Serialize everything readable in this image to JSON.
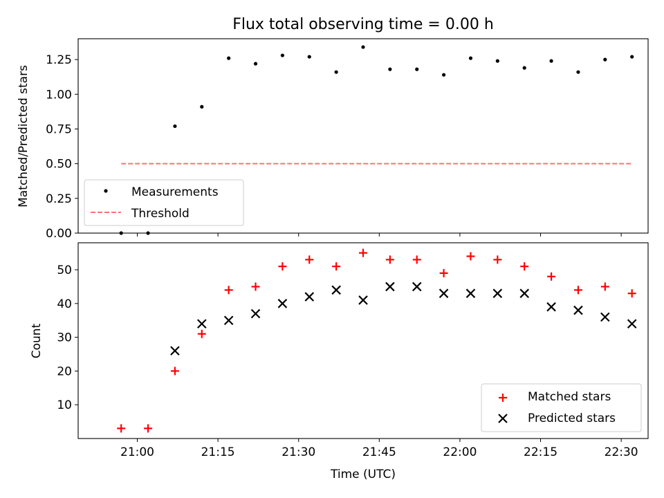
{
  "chart_data": [
    {
      "type": "scatter",
      "title": "Flux total observing time = 0.00 h",
      "xlabel": "",
      "ylabel": "Matched/Predicted stars",
      "ylim": [
        0,
        1.4
      ],
      "yticks": [
        "0.00",
        "0.25",
        "0.50",
        "0.75",
        "1.00",
        "1.25"
      ],
      "ytick_values": [
        0,
        0.25,
        0.5,
        0.75,
        1.0,
        1.25
      ],
      "grid": false,
      "legend_position": "lower-left",
      "series": [
        {
          "name": "Measurements",
          "marker": "dot",
          "color": "#000000",
          "x": [
            "20:57",
            "21:02",
            "21:07",
            "21:12",
            "21:17",
            "21:22",
            "21:27",
            "21:32",
            "21:37",
            "21:42",
            "21:47",
            "21:52",
            "21:57",
            "22:02",
            "22:07",
            "22:12",
            "22:17",
            "22:22",
            "22:27",
            "22:32"
          ],
          "y": [
            0.0,
            0.0,
            0.77,
            0.91,
            1.26,
            1.22,
            1.28,
            1.27,
            1.16,
            1.34,
            1.18,
            1.18,
            1.14,
            1.26,
            1.24,
            1.19,
            1.24,
            1.16,
            1.25,
            1.27
          ]
        },
        {
          "name": "Threshold",
          "style": "dashed-line",
          "color": "#ff7070",
          "x": [
            "20:57",
            "22:32"
          ],
          "y": [
            0.5,
            0.5
          ]
        }
      ]
    },
    {
      "type": "scatter",
      "title": "",
      "xlabel": "Time (UTC)",
      "ylabel": "Count",
      "ylim": [
        0,
        58
      ],
      "yticks": [
        "10",
        "20",
        "30",
        "40",
        "50"
      ],
      "ytick_values": [
        10,
        20,
        30,
        40,
        50
      ],
      "xticks": [
        "21:00",
        "21:15",
        "21:30",
        "21:45",
        "22:00",
        "22:15",
        "22:30"
      ],
      "xrange": [
        "20:49",
        "22:35"
      ],
      "grid": false,
      "legend_position": "lower-right",
      "series": [
        {
          "name": "Matched stars",
          "marker": "plus",
          "color": "#ff0000",
          "x": [
            "20:57",
            "21:02",
            "21:07",
            "21:12",
            "21:17",
            "21:22",
            "21:27",
            "21:32",
            "21:37",
            "21:42",
            "21:47",
            "21:52",
            "21:57",
            "22:02",
            "22:07",
            "22:12",
            "22:17",
            "22:22",
            "22:27",
            "22:32"
          ],
          "y": [
            3,
            3,
            20,
            31,
            44,
            45,
            51,
            53,
            51,
            55,
            53,
            53,
            49,
            54,
            53,
            51,
            48,
            44,
            45,
            43
          ]
        },
        {
          "name": "Predicted stars",
          "marker": "x",
          "color": "#000000",
          "x": [
            "21:07",
            "21:12",
            "21:17",
            "21:22",
            "21:27",
            "21:32",
            "21:37",
            "21:42",
            "21:47",
            "21:52",
            "21:57",
            "22:02",
            "22:07",
            "22:12",
            "22:17",
            "22:22",
            "22:27",
            "22:32"
          ],
          "y": [
            26,
            34,
            35,
            37,
            40,
            42,
            44,
            41,
            45,
            45,
            43,
            43,
            43,
            43,
            39,
            38,
            36,
            34
          ]
        }
      ]
    }
  ]
}
